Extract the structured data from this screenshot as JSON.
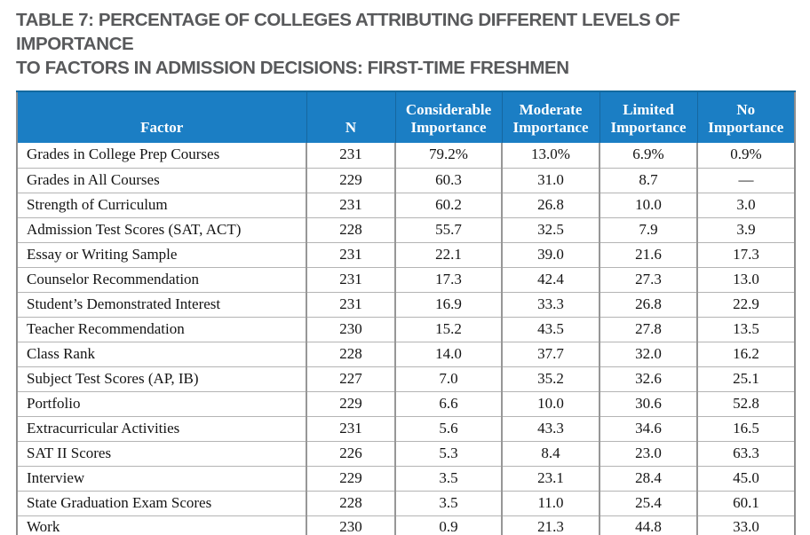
{
  "title": {
    "line1": "TABLE 7: PERCENTAGE OF COLLEGES ATTRIBUTING DIFFERENT LEVELS OF IMPORTANCE",
    "line2": "TO FACTORS IN ADMISSION DECISIONS: FIRST-TIME FRESHMEN"
  },
  "colors": {
    "header_background": "#1b7ec4",
    "header_text": "#ffffff",
    "title_text": "#58595b",
    "grid_line": "#979797",
    "row_separator": "#b4b4b4"
  },
  "table": {
    "columns": [
      {
        "label": "Factor"
      },
      {
        "label": "N"
      },
      {
        "label": "Considerable Importance"
      },
      {
        "label": "Moderate Importance"
      },
      {
        "label": "Limited Importance"
      },
      {
        "label": "No Importance"
      }
    ],
    "rows": [
      {
        "cells": [
          "Grades in College Prep Courses",
          "231",
          "79.2%",
          "13.0%",
          "6.9%",
          "0.9%"
        ]
      },
      {
        "cells": [
          "Grades in All Courses",
          "229",
          "60.3",
          "31.0",
          "8.7",
          "—"
        ]
      },
      {
        "cells": [
          "Strength of Curriculum",
          "231",
          "60.2",
          "26.8",
          "10.0",
          "3.0"
        ]
      },
      {
        "cells": [
          "Admission Test Scores (SAT, ACT)",
          "228",
          "55.7",
          "32.5",
          "7.9",
          "3.9"
        ]
      },
      {
        "cells": [
          "Essay or Writing Sample",
          "231",
          "22.1",
          "39.0",
          "21.6",
          "17.3"
        ]
      },
      {
        "cells": [
          "Counselor Recommendation",
          "231",
          "17.3",
          "42.4",
          "27.3",
          "13.0"
        ]
      },
      {
        "cells": [
          "Student’s Demonstrated Interest",
          "231",
          "16.9",
          "33.3",
          "26.8",
          "22.9"
        ]
      },
      {
        "cells": [
          "Teacher Recommendation",
          "230",
          "15.2",
          "43.5",
          "27.8",
          "13.5"
        ]
      },
      {
        "cells": [
          "Class Rank",
          "228",
          "14.0",
          "37.7",
          "32.0",
          "16.2"
        ]
      },
      {
        "cells": [
          "Subject Test Scores (AP, IB)",
          "227",
          "7.0",
          "35.2",
          "32.6",
          "25.1"
        ]
      },
      {
        "cells": [
          "Portfolio",
          "229",
          "6.6",
          "10.0",
          "30.6",
          "52.8"
        ]
      },
      {
        "cells": [
          "Extracurricular Activities",
          "231",
          "5.6",
          "43.3",
          "34.6",
          "16.5"
        ]
      },
      {
        "cells": [
          "SAT II Scores",
          "226",
          "5.3",
          "8.4",
          "23.0",
          "63.3"
        ]
      },
      {
        "cells": [
          "Interview",
          "229",
          "3.5",
          "23.1",
          "28.4",
          "45.0"
        ]
      },
      {
        "cells": [
          "State Graduation Exam Scores",
          "228",
          "3.5",
          "11.0",
          "25.4",
          "60.1"
        ]
      },
      {
        "cells": [
          "Work",
          "230",
          "0.9",
          "21.3",
          "44.8",
          "33.0"
        ]
      }
    ]
  }
}
